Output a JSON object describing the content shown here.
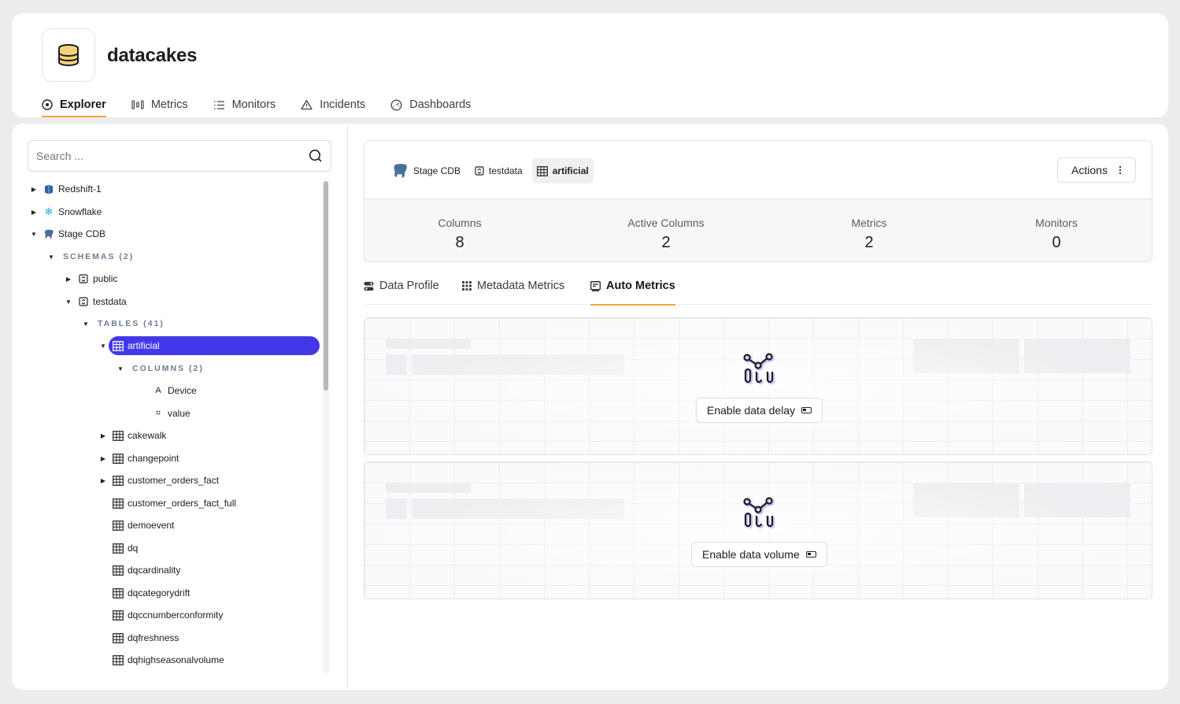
{
  "app": {
    "name": "datacakes"
  },
  "nav": [
    {
      "label": "Explorer",
      "icon": "compass-icon",
      "active": true
    },
    {
      "label": "Metrics",
      "icon": "metrics-icon",
      "active": false
    },
    {
      "label": "Monitors",
      "icon": "list-icon",
      "active": false
    },
    {
      "label": "Incidents",
      "icon": "warning-icon",
      "active": false
    },
    {
      "label": "Dashboards",
      "icon": "gauge-icon",
      "active": false
    }
  ],
  "search": {
    "placeholder": "Search ..."
  },
  "tree": {
    "sources": [
      "Redshift-1",
      "Snowflake",
      "Stage CDB"
    ],
    "schemas_label": "SCHEMAS (2)",
    "schemas": [
      "public",
      "testdata"
    ],
    "tables_label": "TABLES (41)",
    "selected_table": "artificial",
    "columns_label": "COLUMNS (2)",
    "columns": [
      "Device",
      "value"
    ],
    "tables": [
      "cakewalk",
      "changepoint",
      "customer_orders_fact",
      "customer_orders_fact_full",
      "demoevent",
      "dq",
      "dqcardinality",
      "dqcategorydrift",
      "dqccnumberconformity",
      "dqfreshness",
      "dqhighseasonalvolume"
    ]
  },
  "breadcrumb": {
    "source": "Stage CDB",
    "schema": "testdata",
    "table": "artificial"
  },
  "actions_label": "Actions",
  "stats": [
    {
      "label": "Columns",
      "value": "8"
    },
    {
      "label": "Active Columns",
      "value": "2"
    },
    {
      "label": "Metrics",
      "value": "2"
    },
    {
      "label": "Monitors",
      "value": "0"
    }
  ],
  "tabs": [
    {
      "label": "Data Profile",
      "icon": "toggles-icon",
      "active": false
    },
    {
      "label": "Metadata Metrics",
      "icon": "grid-icon",
      "active": false
    },
    {
      "label": "Auto Metrics",
      "icon": "auto-metrics-icon",
      "active": true
    }
  ],
  "features": [
    {
      "button": "Enable data delay",
      "icon": "graph-nodes-icon"
    },
    {
      "button": "Enable data volume",
      "icon": "graph-nodes-icon"
    }
  ],
  "colors": {
    "accent": "#f1a33a",
    "selection": "#4338e8"
  }
}
